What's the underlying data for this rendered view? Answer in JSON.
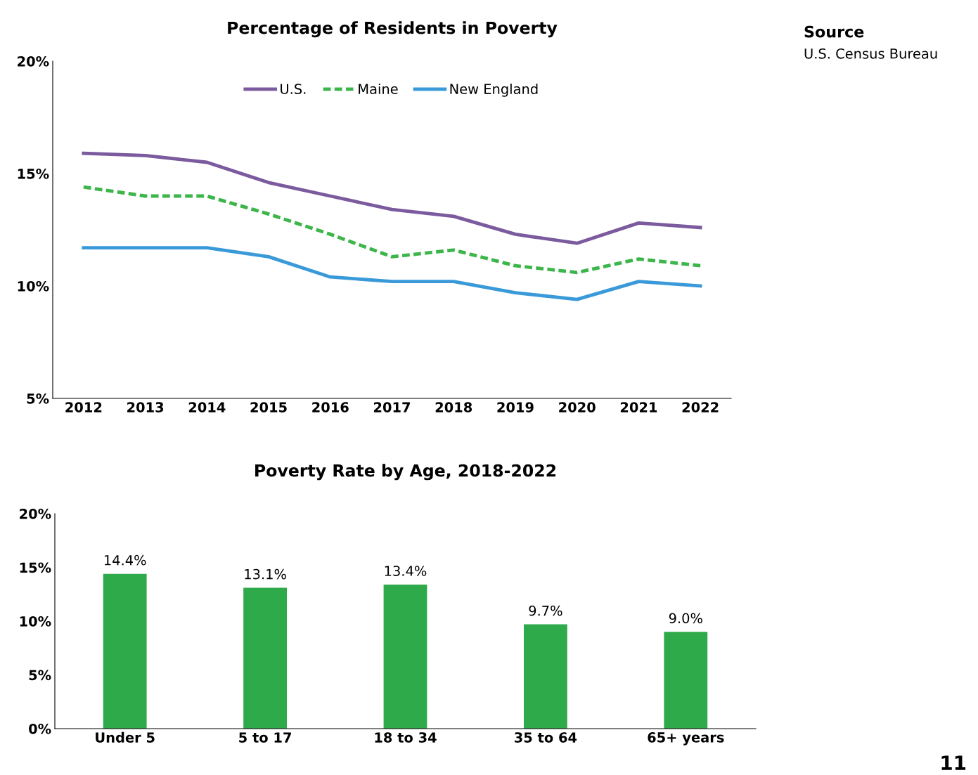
{
  "chart_data": [
    {
      "type": "line",
      "title": "Percentage of Residents in Poverty",
      "categories": [
        "2012",
        "2013",
        "2014",
        "2015",
        "2016",
        "2017",
        "2018",
        "2019",
        "2020",
        "2021",
        "2022"
      ],
      "series": [
        {
          "name": "U.S.",
          "color": "#7b5a9e",
          "line_style": "solid",
          "values": [
            15.9,
            15.8,
            15.5,
            14.6,
            14.0,
            13.4,
            13.1,
            12.3,
            11.9,
            12.8,
            12.6
          ]
        },
        {
          "name": "Maine",
          "color": "#3cb54a",
          "line_style": "dashed",
          "values": [
            14.4,
            14.0,
            14.0,
            13.2,
            12.3,
            11.3,
            11.6,
            10.9,
            10.6,
            11.2,
            10.9
          ]
        },
        {
          "name": "New England",
          "color": "#3a9ad9",
          "line_style": "solid",
          "values": [
            11.7,
            11.7,
            11.7,
            11.3,
            10.4,
            10.2,
            10.2,
            9.7,
            9.4,
            10.2,
            10.0
          ]
        }
      ],
      "ylim": [
        5,
        20
      ],
      "yticks": [
        {
          "value": 5,
          "label": "5%"
        },
        {
          "value": 10,
          "label": "10%"
        },
        {
          "value": 15,
          "label": "15%"
        },
        {
          "value": 20,
          "label": "20%"
        }
      ],
      "grid": false,
      "legend": "top",
      "marker": "none",
      "annotations": [
        "Source",
        "U.S. Census Bureau",
        "11"
      ]
    },
    {
      "type": "bar",
      "title": "Poverty Rate by Age, 2018-2022",
      "categories": [
        "Under 5",
        "5 to 17",
        "18 to 34",
        "35 to 64",
        "65+ years"
      ],
      "values": [
        14.4,
        13.1,
        13.4,
        9.7,
        9.0
      ],
      "color": "#2eaa4a",
      "value_labels": [
        "14.4%",
        "13.1%",
        "13.4%",
        "9.7%",
        "9.0%"
      ],
      "ylim": [
        0,
        20
      ],
      "yticks": [
        {
          "value": 0,
          "label": "0%"
        },
        {
          "value": 5,
          "label": "5%"
        },
        {
          "value": 10,
          "label": "10%"
        },
        {
          "value": 15,
          "label": "15%"
        },
        {
          "value": 20,
          "label": "20%"
        }
      ],
      "grid": false
    }
  ]
}
